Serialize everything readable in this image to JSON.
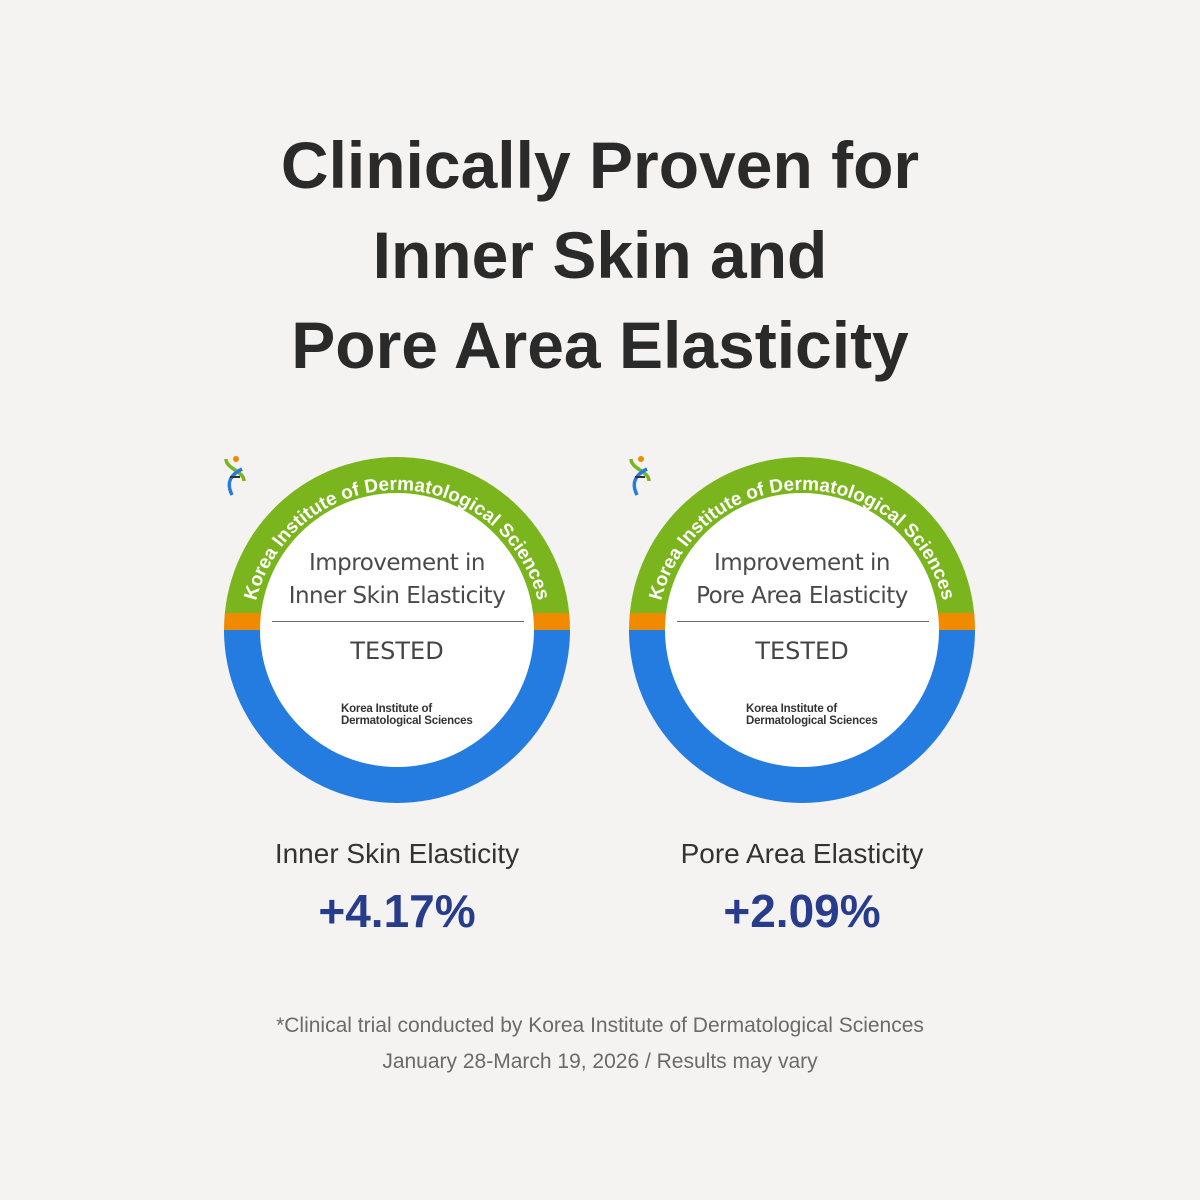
{
  "title": {
    "line1": "Clinically Proven for",
    "line2": "Inner Skin and",
    "line3": "Pore Area Elasticity"
  },
  "colors": {
    "ring_green": "#7ab51d",
    "ring_orange": "#f08a00",
    "ring_blue": "#247ce0",
    "value_navy": "#283c8c"
  },
  "badges": [
    {
      "arc_text": "Korea Institute of Dermatological Sciences",
      "line1": "Improvement in",
      "line2": "Inner Skin Elasticity",
      "status": "TESTED",
      "logo_line1": "Korea Institute of",
      "logo_line2": "Dermatological Sciences",
      "logo_icon": "dna-helix-icon"
    },
    {
      "arc_text": "Korea Institute of Dermatological Sciences",
      "line1": "Improvement in",
      "line2": "Pore Area Elasticity",
      "status": "TESTED",
      "logo_line1": "Korea Institute of",
      "logo_line2": "Dermatological Sciences",
      "logo_icon": "dna-helix-icon"
    }
  ],
  "results": [
    {
      "label": "Inner Skin Elasticity",
      "value": "+4.17%"
    },
    {
      "label": "Pore Area Elasticity",
      "value": "+2.09%"
    }
  ],
  "footnote": {
    "line1": "*Clinical trial conducted by Korea Institute of Dermatological Sciences",
    "line2": "January 28-March 19, 2026 / Results may vary"
  }
}
